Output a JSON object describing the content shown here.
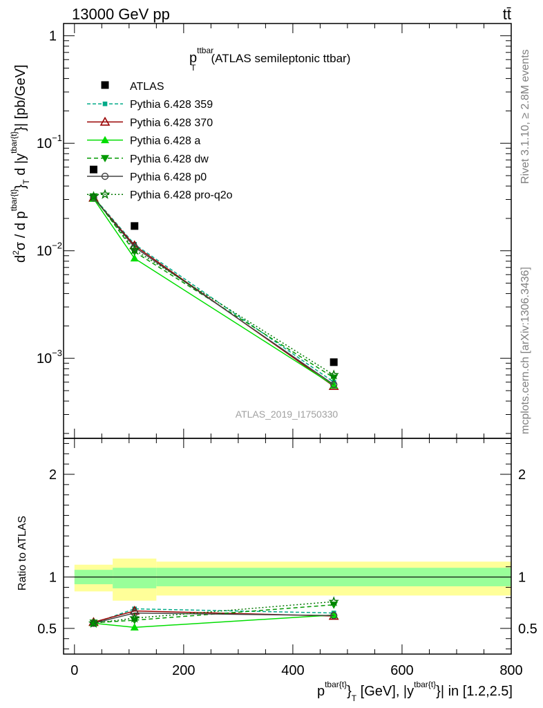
{
  "header": {
    "energy_label": "13000 GeV pp",
    "process_label": "tt̄"
  },
  "side_labels": {
    "rivet": "Rivet 3.1.10, ≥ 2.8M events",
    "mcplots": "mcplots.cern.ch [arXiv:1306.3436]"
  },
  "watermark": "ATLAS_2019_I1750330",
  "chart_data": [
    {
      "type": "line",
      "title": "(ATLAS semileptonic ttbar)",
      "title_main": "p",
      "title_sub": "T",
      "title_sup": "ttbar",
      "ylabel_parts": [
        "d",
        "2",
        "σ / d p",
        "tbar{t}",
        "}",
        "T",
        " d |y",
        "tbar{t}",
        "}| [pb/GeV]"
      ],
      "y_scale": "log",
      "xlim": [
        -20,
        800
      ],
      "ylim": [
        0.00018,
        1.3
      ],
      "y_ticks": [
        {
          "value": 1,
          "label": "1"
        },
        {
          "value": 0.1,
          "label": "10",
          "exp": "−1"
        },
        {
          "value": 0.01,
          "label": "10",
          "exp": "−2"
        },
        {
          "value": 0.001,
          "label": "10",
          "exp": "−3"
        }
      ],
      "legend_position": "upper-left",
      "data": {
        "name": "ATLAS",
        "x": [
          35,
          110,
          475
        ],
        "y": [
          0.057,
          0.017,
          0.00092
        ]
      },
      "series": [
        {
          "name": "Pythia 6.428 359",
          "color": "#00aa88",
          "dash": "5,3",
          "marker": "square",
          "x": [
            35,
            110,
            475
          ],
          "y": [
            0.0315,
            0.0115,
            0.0006
          ]
        },
        {
          "name": "Pythia 6.428 370",
          "color": "#990000",
          "dash": "",
          "marker": "triangle-open",
          "x": [
            35,
            110,
            475
          ],
          "y": [
            0.031,
            0.0112,
            0.00055
          ]
        },
        {
          "name": "Pythia 6.428 a",
          "color": "#00dd00",
          "dash": "",
          "marker": "triangle",
          "x": [
            35,
            110,
            475
          ],
          "y": [
            0.0305,
            0.0085,
            0.00056
          ]
        },
        {
          "name": "Pythia 6.428 dw",
          "color": "#009900",
          "dash": "6,4",
          "marker": "triangle-down",
          "x": [
            35,
            110,
            475
          ],
          "y": [
            0.032,
            0.0098,
            0.00066
          ]
        },
        {
          "name": "Pythia 6.428 p0",
          "color": "#444444",
          "dash": "",
          "marker": "circle-open",
          "x": [
            35,
            110,
            475
          ],
          "y": [
            0.031,
            0.0108,
            0.00057
          ]
        },
        {
          "name": "Pythia 6.428 pro-q2o",
          "color": "#007700",
          "dash": "2,3",
          "marker": "star",
          "x": [
            35,
            110,
            475
          ],
          "y": [
            0.032,
            0.0102,
            0.0007
          ]
        }
      ]
    },
    {
      "type": "line",
      "ylabel": "Ratio to ATLAS",
      "xlabel_parts": [
        "p",
        "tbar{t}",
        "}",
        "T",
        " [GeV], |y",
        "tbar{t}",
        "}| in [1.2,2.5]"
      ],
      "xlim": [
        -20,
        800
      ],
      "ylim": [
        0.25,
        2.35
      ],
      "x_ticks": [
        0,
        200,
        400,
        600,
        800
      ],
      "y_ticks": [
        {
          "value": 0.5,
          "label": "0.5"
        },
        {
          "value": 1,
          "label": "1"
        },
        {
          "value": 2,
          "label": "2"
        }
      ],
      "bands": [
        {
          "x0": 0,
          "x1": 70,
          "outer": [
            0.86,
            1.12
          ],
          "inner": [
            0.93,
            1.07
          ]
        },
        {
          "x0": 70,
          "x1": 150,
          "outer": [
            0.77,
            1.18
          ],
          "inner": [
            0.89,
            1.09
          ]
        },
        {
          "x0": 150,
          "x1": 800,
          "outer": [
            0.82,
            1.15
          ],
          "inner": [
            0.91,
            1.09
          ]
        }
      ],
      "band_colors": {
        "outer": "#ffff99",
        "inner": "#99ff99"
      },
      "series": [
        {
          "name": "Pythia 6.428 359",
          "x": [
            35,
            110,
            475
          ],
          "y": [
            0.55,
            0.69,
            0.65
          ]
        },
        {
          "name": "Pythia 6.428 370",
          "x": [
            35,
            110,
            475
          ],
          "y": [
            0.56,
            0.67,
            0.62
          ]
        },
        {
          "name": "Pythia 6.428 a",
          "x": [
            35,
            110,
            475
          ],
          "y": [
            0.55,
            0.51,
            0.63
          ]
        },
        {
          "name": "Pythia 6.428 dw",
          "x": [
            35,
            110,
            475
          ],
          "y": [
            0.555,
            0.58,
            0.73
          ]
        },
        {
          "name": "Pythia 6.428 p0",
          "x": [
            35,
            110,
            475
          ],
          "y": [
            0.55,
            0.65,
            0.625
          ]
        },
        {
          "name": "Pythia 6.428 pro-q2o",
          "x": [
            35,
            110,
            475
          ],
          "y": [
            0.55,
            0.6,
            0.76
          ]
        }
      ]
    }
  ]
}
